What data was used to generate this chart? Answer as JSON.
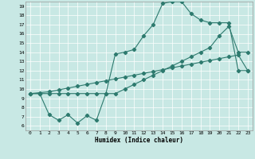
{
  "xlabel": "Humidex (Indice chaleur)",
  "xlim": [
    -0.5,
    23.5
  ],
  "ylim": [
    5.5,
    19.5
  ],
  "xticks": [
    0,
    1,
    2,
    3,
    4,
    5,
    6,
    7,
    8,
    9,
    10,
    11,
    12,
    13,
    14,
    15,
    16,
    17,
    18,
    19,
    20,
    21,
    22,
    23
  ],
  "yticks": [
    6,
    7,
    8,
    9,
    10,
    11,
    12,
    13,
    14,
    15,
    16,
    17,
    18,
    19
  ],
  "bg_color": "#c8e8e4",
  "grid_color": "#ffffff",
  "line_color": "#2d7a6e",
  "line1_x": [
    0,
    1,
    2,
    3,
    4,
    5,
    6,
    7,
    8,
    9,
    10,
    11,
    12,
    13,
    14,
    15,
    16,
    17,
    18,
    19,
    20,
    21,
    22,
    23
  ],
  "line1_y": [
    9.5,
    9.6,
    9.7,
    9.9,
    10.1,
    10.3,
    10.5,
    10.7,
    10.9,
    11.1,
    11.3,
    11.5,
    11.7,
    11.9,
    12.1,
    12.3,
    12.5,
    12.7,
    12.9,
    13.1,
    13.3,
    13.5,
    13.7,
    12.0
  ],
  "line2_x": [
    0,
    1,
    2,
    3,
    4,
    5,
    6,
    7,
    8,
    9,
    10,
    11,
    12,
    13,
    14,
    15,
    16,
    17,
    18,
    19,
    20,
    21,
    22,
    23
  ],
  "line2_y": [
    9.5,
    9.5,
    9.5,
    9.5,
    9.5,
    9.5,
    9.5,
    9.5,
    9.5,
    9.5,
    10.0,
    10.5,
    11.0,
    11.5,
    12.0,
    12.5,
    13.0,
    13.5,
    14.0,
    14.5,
    15.8,
    16.8,
    14.0,
    14.0
  ],
  "line3_x": [
    0,
    1,
    2,
    3,
    4,
    5,
    6,
    7,
    8,
    9,
    10,
    11,
    12,
    13,
    14,
    15,
    16,
    17,
    18,
    19,
    20,
    21,
    22,
    23
  ],
  "line3_y": [
    9.5,
    9.5,
    7.2,
    6.6,
    7.2,
    6.3,
    7.1,
    6.6,
    9.5,
    13.8,
    14.0,
    14.3,
    15.8,
    17.0,
    19.3,
    19.5,
    19.5,
    18.2,
    17.5,
    17.2,
    17.2,
    17.2,
    12.0,
    12.0
  ]
}
